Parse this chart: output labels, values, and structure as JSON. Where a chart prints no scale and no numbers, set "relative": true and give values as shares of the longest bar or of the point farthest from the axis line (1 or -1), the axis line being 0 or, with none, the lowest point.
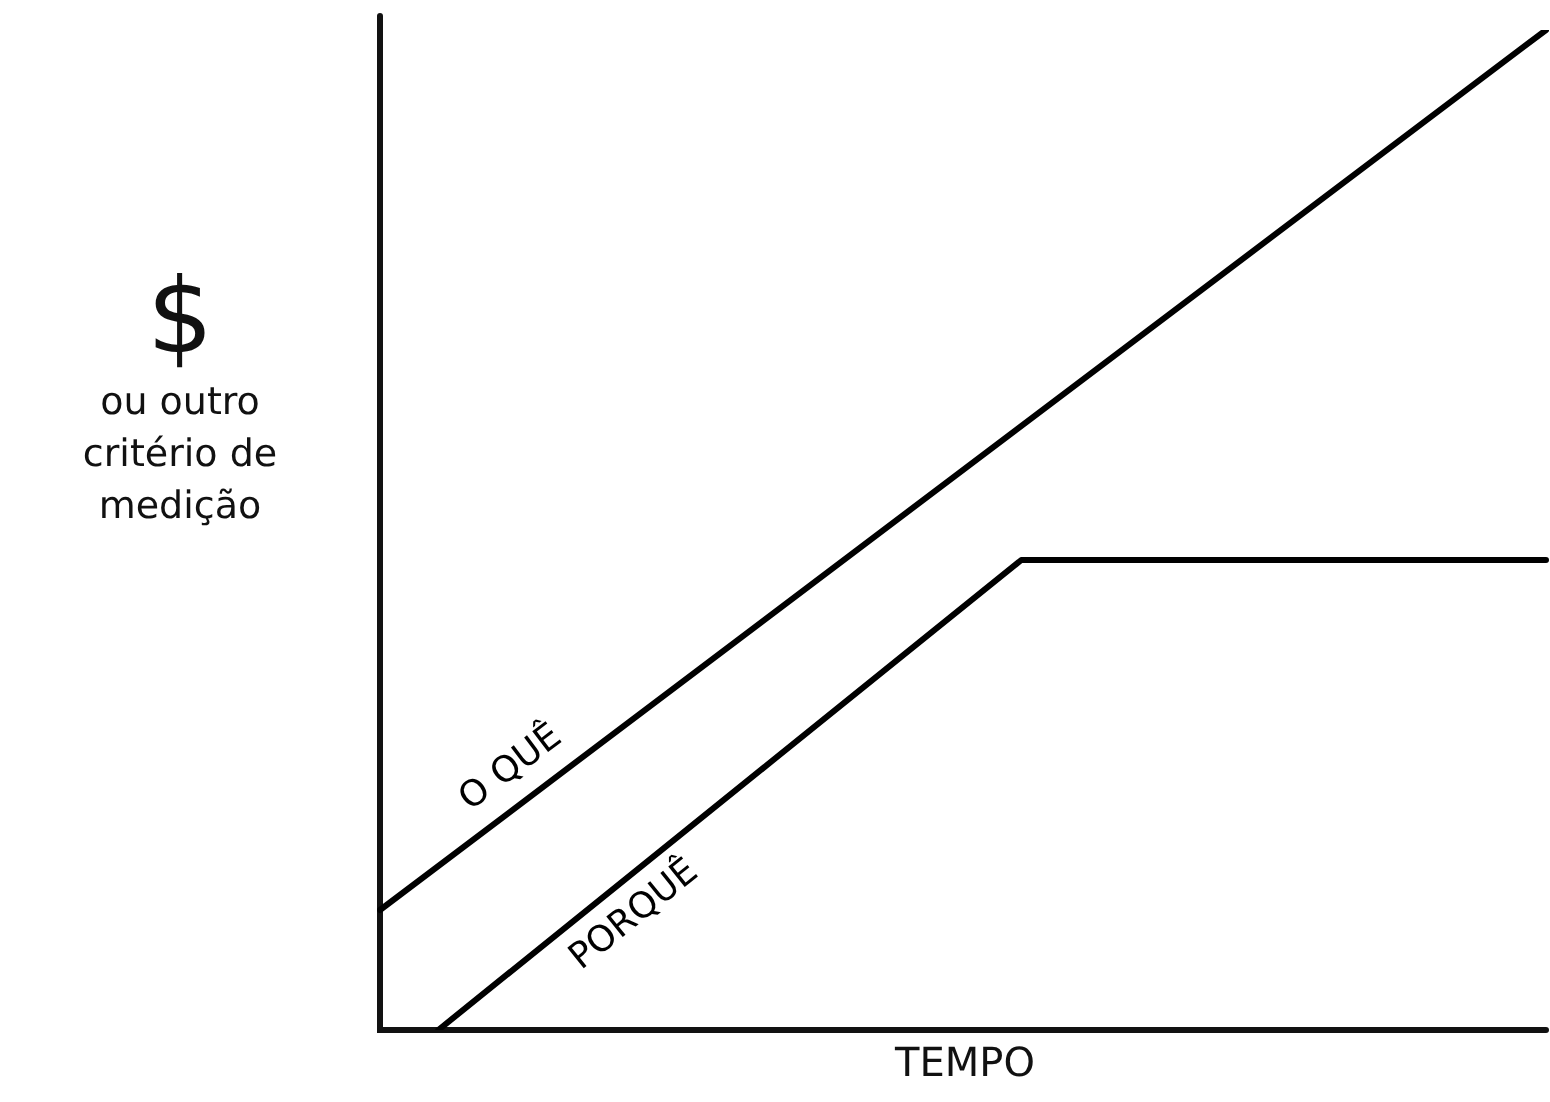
{
  "chart_data": {
    "type": "line",
    "relative": true,
    "xlabel": "TEMPO",
    "ylabel": "$\nou outro\ncritério de\nmedição",
    "tick_labels": false,
    "marker": "none",
    "line_style": "solid",
    "categories": [
      null,
      null,
      null,
      null,
      null,
      null,
      null,
      null,
      null,
      null,
      null,
      null,
      null,
      null,
      null,
      null,
      null,
      null,
      null,
      null,
      null
    ],
    "series": [
      {
        "name": "O QUÊ",
        "color": "#000000",
        "values": [
          0.12,
          null,
          null,
          null,
          null,
          null,
          null,
          null,
          null,
          null,
          null,
          null,
          null,
          null,
          null,
          null,
          null,
          null,
          null,
          null,
          1
        ]
      },
      {
        "name": "PORQUÊ",
        "color": "#000000",
        "values": [
          null,
          0,
          null,
          null,
          null,
          null,
          null,
          null,
          null,
          null,
          null,
          0.47,
          null,
          null,
          null,
          null,
          null,
          null,
          null,
          null,
          0.47
        ]
      }
    ]
  }
}
